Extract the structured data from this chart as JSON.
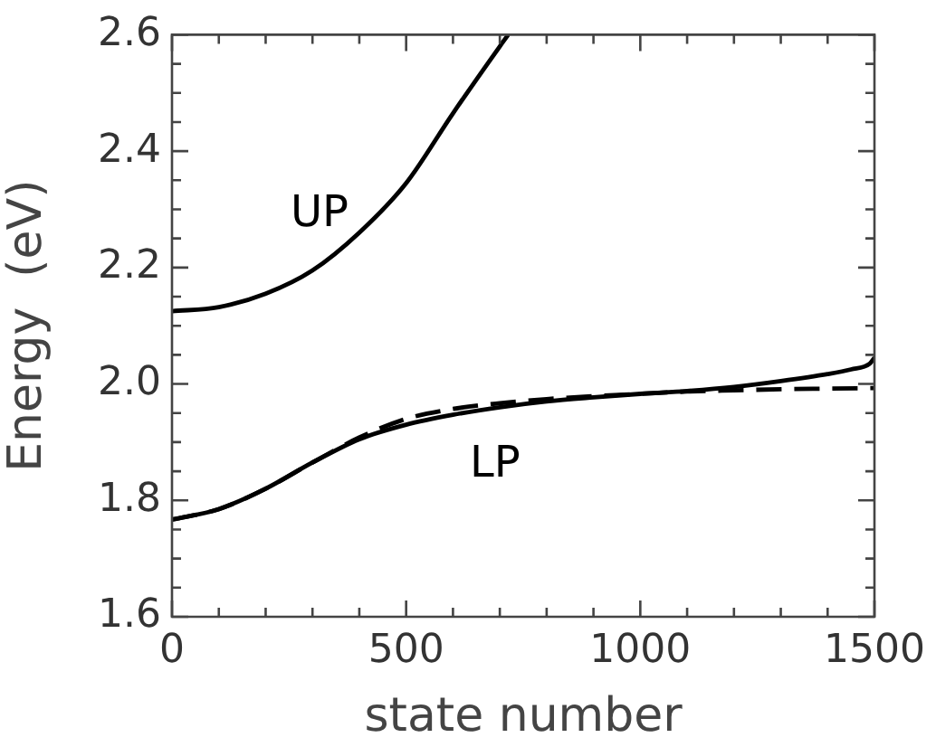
{
  "chart_data": {
    "type": "line",
    "xlabel": "state number",
    "ylabel": "Energy  (eV)",
    "xlim": [
      0,
      1500
    ],
    "ylim": [
      1.6,
      2.6
    ],
    "xticks": [
      0,
      {
        "value": 100,
        "label": null
      },
      {
        "value": 200,
        "label": null
      },
      {
        "value": 300,
        "label": null
      },
      {
        "value": 400,
        "label": null
      },
      500,
      {
        "value": 600,
        "label": null
      },
      {
        "value": 700,
        "label": null
      },
      {
        "value": 800,
        "label": null
      },
      {
        "value": 900,
        "label": null
      },
      1000,
      {
        "value": 1100,
        "label": null
      },
      {
        "value": 1200,
        "label": null
      },
      {
        "value": 1300,
        "label": null
      },
      {
        "value": 1400,
        "label": null
      },
      1500
    ],
    "yticks": [
      {
        "value": 1.6,
        "label": "1.6"
      },
      {
        "value": 1.65,
        "label": null
      },
      {
        "value": 1.7,
        "label": null
      },
      {
        "value": 1.75,
        "label": null
      },
      {
        "value": 1.8,
        "label": "1.8"
      },
      {
        "value": 1.85,
        "label": null
      },
      {
        "value": 1.9,
        "label": null
      },
      {
        "value": 1.95,
        "label": null
      },
      {
        "value": 2.0,
        "label": "2.0"
      },
      {
        "value": 2.05,
        "label": null
      },
      {
        "value": 2.1,
        "label": null
      },
      {
        "value": 2.15,
        "label": null
      },
      {
        "value": 2.2,
        "label": "2.2"
      },
      {
        "value": 2.25,
        "label": null
      },
      {
        "value": 2.3,
        "label": null
      },
      {
        "value": 2.35,
        "label": null
      },
      {
        "value": 2.4,
        "label": "2.4"
      },
      {
        "value": 2.45,
        "label": null
      },
      {
        "value": 2.5,
        "label": null
      },
      {
        "value": 2.55,
        "label": null
      },
      {
        "value": 2.6,
        "label": "2.6"
      }
    ],
    "grid": false,
    "legend": false,
    "marker": "none",
    "series": [
      {
        "color": "#000000",
        "line_style": "solid",
        "x": [
          0,
          100,
          200,
          300,
          400,
          500,
          600,
          700,
          718
        ],
        "values": [
          2.125,
          2.132,
          2.155,
          2.195,
          2.26,
          2.345,
          2.465,
          2.58,
          2.6
        ]
      },
      {
        "color": "#000000",
        "line_style": "solid",
        "x": [
          0,
          100,
          200,
          300,
          400,
          500,
          600,
          700,
          800,
          900,
          1000,
          1100,
          1200,
          1300,
          1400,
          1450,
          1490,
          1500
        ],
        "values": [
          1.767,
          1.785,
          1.82,
          1.865,
          1.905,
          1.93,
          1.947,
          1.96,
          1.97,
          1.977,
          1.983,
          1.988,
          1.995,
          2.005,
          2.017,
          2.025,
          2.035,
          2.045
        ]
      },
      {
        "color": "#000000",
        "line_style": "dashed",
        "x": [
          0,
          100,
          200,
          300,
          400,
          500,
          600,
          700,
          800,
          900,
          1000,
          1100,
          1200,
          1300,
          1400,
          1500
        ],
        "values": [
          1.767,
          1.785,
          1.82,
          1.865,
          1.908,
          1.94,
          1.957,
          1.967,
          1.974,
          1.979,
          1.983,
          1.987,
          1.989,
          1.991,
          1.992,
          1.993
        ]
      }
    ],
    "annotations": [
      "UP",
      "LP"
    ]
  }
}
